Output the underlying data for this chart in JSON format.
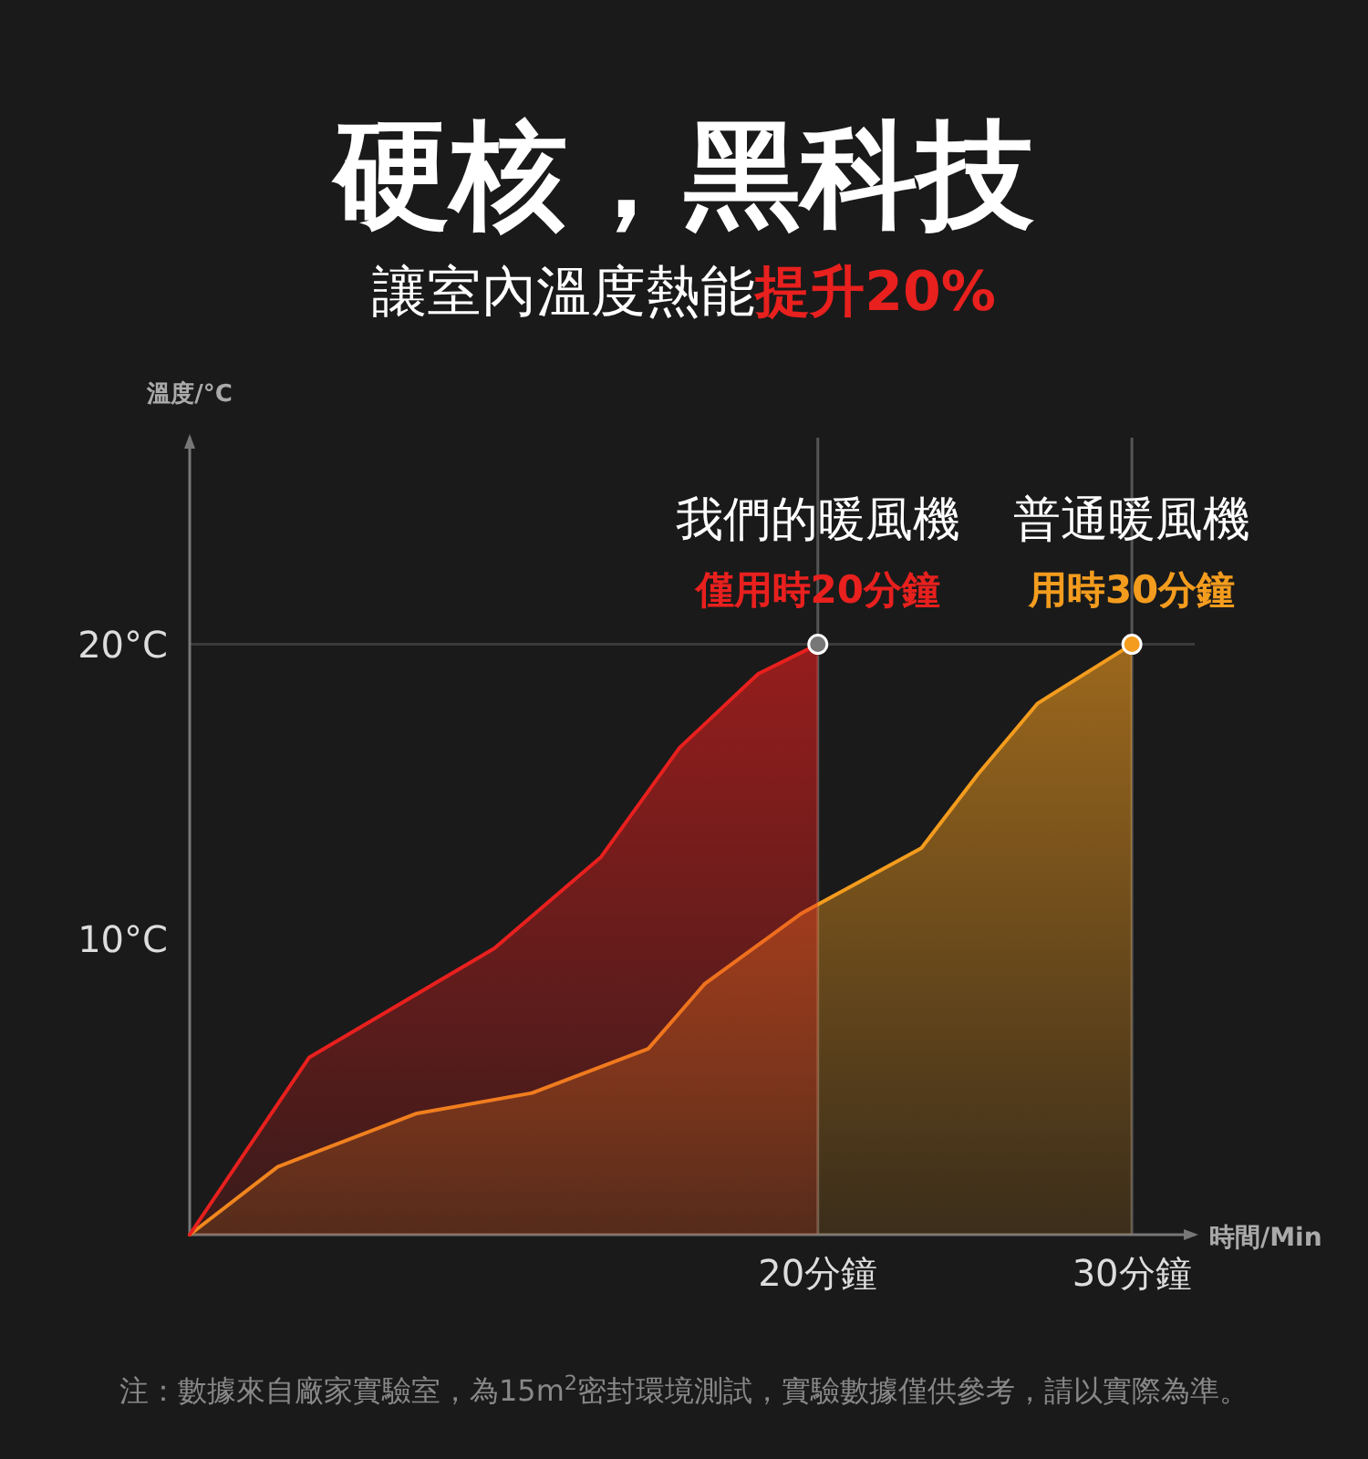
{
  "chart_data": {
    "type": "area",
    "title": "硬核，黑科技",
    "subtitle": "讓室內溫度熱能**提升20%**",
    "ylabel": "溫度/°C",
    "xlabel": "時間/Min",
    "xlim": [
      0,
      32
    ],
    "ylim": [
      0,
      27
    ],
    "xticks": [
      {
        "value": 20,
        "label": "20分鐘"
      },
      {
        "value": 30,
        "label": "30分鐘"
      }
    ],
    "yticks": [
      {
        "value": 10,
        "label": "10°C"
      },
      {
        "value": 20,
        "label": "20°C"
      }
    ],
    "ref_lines": [
      {
        "axis": "y",
        "value": 20,
        "color": "#3a3a3a"
      },
      {
        "axis": "x",
        "value": 20,
        "color": "#555555"
      },
      {
        "axis": "x",
        "value": 30,
        "color": "#555555"
      }
    ],
    "series": [
      {
        "name": "普通暖風機",
        "color": "#f39c1e",
        "x": [
          0,
          2.8,
          7.2,
          10.9,
          14.6,
          16.4,
          19.5,
          23.3,
          25.1,
          27,
          30
        ],
        "values": [
          0,
          2.3,
          4.1,
          4.8,
          6.3,
          8.5,
          10.9,
          13.1,
          15.6,
          18,
          20
        ]
      },
      {
        "name": "我們的暖風機",
        "color": "#e8201e",
        "x": [
          0,
          3.8,
          9.7,
          13.1,
          15.6,
          18.1,
          20
        ],
        "values": [
          0,
          6,
          9.7,
          12.8,
          16.5,
          19,
          20
        ]
      },
      {
        "type": "scatter",
        "x": [
          20,
          30
        ],
        "values": [
          20,
          20
        ],
        "colors": [
          "#777777",
          "#f39c1e"
        ]
      }
    ],
    "annotations": [
      {
        "text": "僅用時20分鐘",
        "x": 20,
        "y": 20
      },
      {
        "text": "用時30分鐘",
        "x": 30,
        "y": 20
      },
      "注：數據來自廠家實驗室，為15m$^{2}$密封環境測試，實驗數據僅供參考，請以實際為準。"
    ]
  }
}
